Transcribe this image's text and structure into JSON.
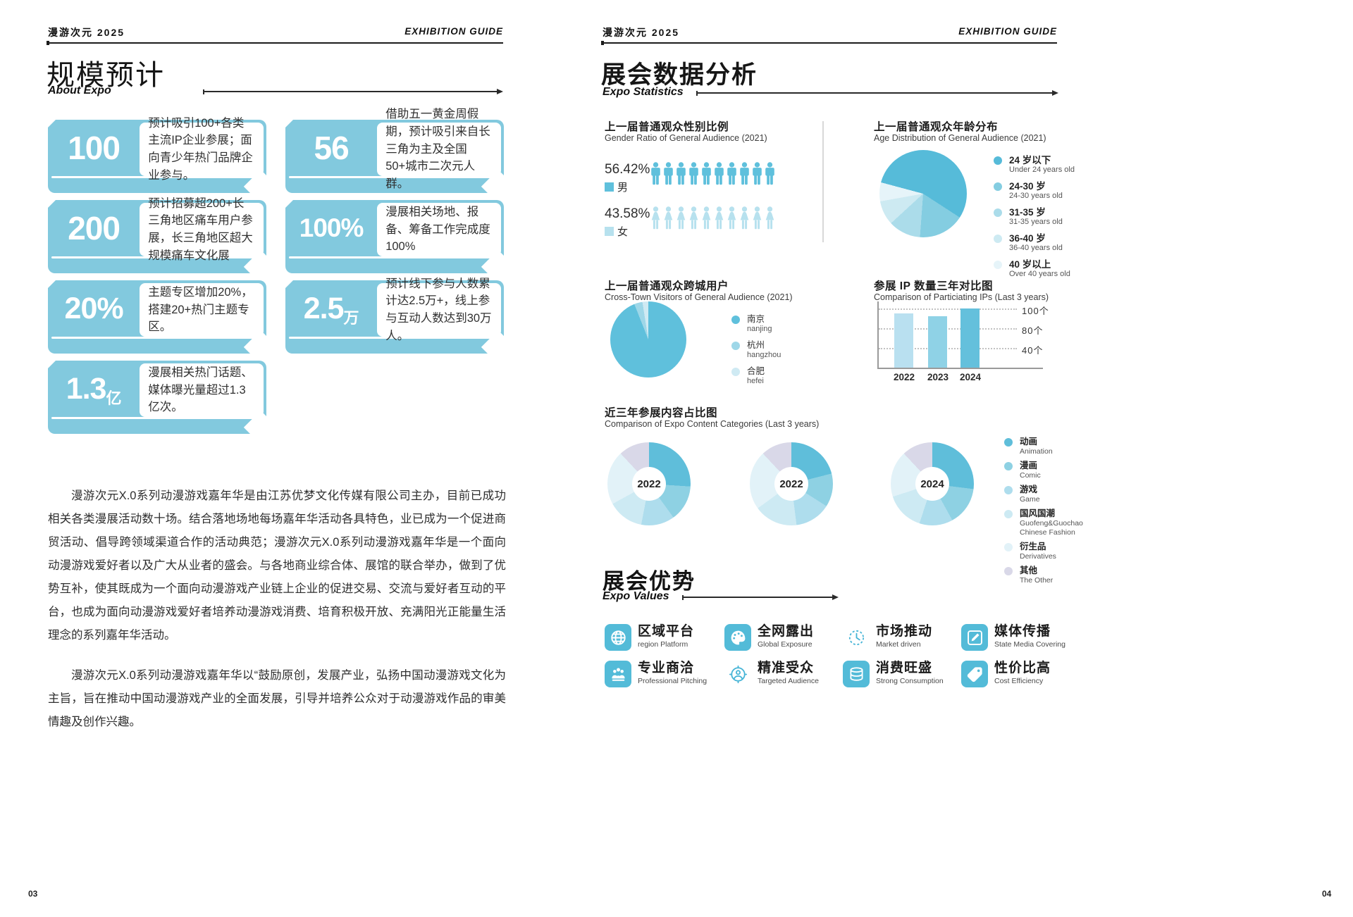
{
  "colors": {
    "accent": "#82c9de",
    "icon_blue": "#53bbd8",
    "male": "#5fc0dc",
    "female": "#b7e1ee",
    "lavender": "#d9d8e8"
  },
  "page_left": {
    "header": {
      "brand": "漫游次元 2025",
      "guide": "EXHIBITION GUIDE"
    },
    "title": "规模预计",
    "subtitle": "About  Expo",
    "cards": [
      {
        "value": "100",
        "unit": "",
        "desc": "预计吸引100+各类主流IP企业参展；面向青少年热门品牌企业参与。"
      },
      {
        "value": "56",
        "unit": "",
        "desc": "借助五一黄金周假期，预计吸引来自长三角为主及全国50+城市二次元人群。"
      },
      {
        "value": "200",
        "unit": "",
        "desc": "预计招募超200+长三角地区痛车用户参展，长三角地区超大规模痛车文化展"
      },
      {
        "value": "100%",
        "unit": "",
        "desc": "漫展相关场地、报备、筹备工作完成度100%"
      },
      {
        "value": "20%",
        "unit": "",
        "desc": "主题专区增加20%，搭建20+热门主题专区。"
      },
      {
        "value": "2.5",
        "unit": "万",
        "desc": "预计线下参与人数累计达2.5万+，线上参与互动人数达到30万人。"
      },
      {
        "value": "1.3",
        "unit": "亿",
        "desc": "漫展相关热门话题、媒体曝光量超过1.3亿次。"
      }
    ],
    "paragraphs": [
      "漫游次元X.0系列动漫游戏嘉年华是由江苏优梦文化传媒有限公司主办，目前已成功相关各类漫展活动数十场。结合落地场地每场嘉年华活动各具特色，业已成为一个促进商贸活动、倡导跨领域渠道合作的活动典范；漫游次元X.0系列动漫游戏嘉年华是一个面向动漫游戏爱好者以及广大从业者的盛会。与各地商业综合体、展馆的联合举办，做到了优势互补，使其既成为一个面向动漫游戏产业链上企业的促进交易、交流与爱好者互动的平台，也成为面向动漫游戏爱好者培养动漫游戏消费、培育积极开放、充满阳光正能量生活理念的系列嘉年华活动。",
      "漫游次元X.0系列动漫游戏嘉年华以“鼓励原创，发展产业，弘扬中国动漫游戏文化为主旨，旨在推动中国动漫游戏产业的全面发展，引导并培养公众对于动漫游戏作品的审美情趣及创作兴趣。"
    ],
    "page_number": "03"
  },
  "page_right": {
    "header": {
      "brand": "漫游次元 2025",
      "guide": "EXHIBITION GUIDE"
    },
    "title": "展会数据分析",
    "subtitle": "Expo Statistics",
    "gender": {
      "title_cn": "上一届普通观众性别比例",
      "title_en": "Gender Ratio of General Audience (2021)",
      "male_pct": "56.42%",
      "male_label": "男",
      "female_pct": "43.58%",
      "female_label": "女"
    },
    "age": {
      "title_cn": "上一届普通观众年龄分布",
      "title_en": "Age Distribution of General Audience (2021)",
      "legend": [
        {
          "cn": "24 岁以下",
          "en": "Under 24 years old"
        },
        {
          "cn": "24-30 岁",
          "en": "24-30 years old"
        },
        {
          "cn": "31-35 岁",
          "en": "31-35 years old"
        },
        {
          "cn": "36-40 岁",
          "en": "36-40 years old"
        },
        {
          "cn": "40 岁以上",
          "en": "Over 40 years old"
        }
      ]
    },
    "crosstown": {
      "title_cn": "上一届普通观众跨城用户",
      "title_en": "Cross-Town Visitors of General Audience (2021)",
      "legend": [
        {
          "cn": "南京",
          "en": "nanjing"
        },
        {
          "cn": "杭州",
          "en": "hangzhou"
        },
        {
          "cn": "合肥",
          "en": "hefei"
        }
      ]
    },
    "ip": {
      "title_cn": "参展 IP 数量三年对比图",
      "title_en": "Comparison of Particiating IPs (Last 3 years)",
      "gridline_labels": [
        "100个",
        "80个",
        "40个"
      ],
      "years": [
        "2022",
        "2023",
        "2024"
      ]
    },
    "categories": {
      "title_cn": "近三年参展内容占比图",
      "title_en": "Comparison of Expo Content Categories (Last 3 years)",
      "donut_labels": [
        "2022",
        "2022",
        "2024"
      ],
      "legend": [
        {
          "cn": "动画",
          "en": "Animation"
        },
        {
          "cn": "漫画",
          "en": "Comic"
        },
        {
          "cn": "游戏",
          "en": "Game"
        },
        {
          "cn": "国风国潮",
          "en": "Guofeng&Guochao Chinese Fashion"
        },
        {
          "cn": "衍生品",
          "en": "Derivatives"
        },
        {
          "cn": "其他",
          "en": "The Other"
        }
      ]
    },
    "values": {
      "title": "展会优势",
      "subtitle": "Expo Values",
      "items": [
        {
          "cn": "区域平台",
          "en": "region Platform",
          "icon": "globe-icon"
        },
        {
          "cn": "全网露出",
          "en": "Global Exposure",
          "icon": "palette-icon"
        },
        {
          "cn": "市场推动",
          "en": "Market driven",
          "icon": "clock-icon"
        },
        {
          "cn": "媒体传播",
          "en": "State Media Covering",
          "icon": "pencil-icon"
        },
        {
          "cn": "专业商洽",
          "en": "Professional Pitching",
          "icon": "meeting-icon"
        },
        {
          "cn": "精准受众",
          "en": "Targeted Audience",
          "icon": "target-audience-icon"
        },
        {
          "cn": "消费旺盛",
          "en": "Strong Consumption",
          "icon": "coins-icon"
        },
        {
          "cn": "性价比高",
          "en": "Cost Efficiency",
          "icon": "tag-icon"
        }
      ]
    },
    "page_number": "04"
  },
  "chart_data": [
    {
      "id": "gender",
      "type": "pictogram",
      "title": "上一届普通观众性别比例",
      "unit": "%",
      "icon_count": 10,
      "series": [
        {
          "name": "男",
          "value": 56.42
        },
        {
          "name": "女",
          "value": 43.58
        }
      ],
      "colors": [
        "#5fc0dc",
        "#b7e1ee"
      ]
    },
    {
      "id": "age",
      "type": "pie",
      "title": "上一届普通观众年龄分布",
      "start_deg": -75,
      "labels": [
        "24 岁以下",
        "24-30 岁",
        "31-35 岁",
        "36-40 岁",
        "40 岁以上"
      ],
      "values": [
        55,
        17,
        12,
        9,
        7
      ],
      "colors": [
        "#56bbd9",
        "#84cde1",
        "#abdcea",
        "#cdeaf2",
        "#e6f4f9"
      ]
    },
    {
      "id": "crosstown",
      "type": "pie",
      "title": "上一届普通观众跨城用户",
      "start_deg": 0,
      "labels": [
        "南京",
        "杭州",
        "合肥"
      ],
      "values": [
        94,
        3.5,
        2.5
      ],
      "colors": [
        "#5fc0dc",
        "#9ed7e8",
        "#cfeaf3"
      ]
    },
    {
      "id": "ip",
      "type": "bar",
      "title": "参展 IP 数量三年对比图",
      "categories": [
        "2022",
        "2023",
        "2024"
      ],
      "values": [
        92,
        87,
        100
      ],
      "unit": "个",
      "ylim": [
        0,
        100
      ],
      "gridlines": [
        100,
        80,
        40
      ],
      "colors": [
        "#b9e0f0",
        "#8fd2e6",
        "#64c0dc"
      ]
    },
    {
      "id": "categories_2022a",
      "type": "donut",
      "label": "2022",
      "start_deg": 0,
      "labels": [
        "动画",
        "漫画",
        "游戏",
        "国风国潮",
        "衍生品",
        "其他"
      ],
      "values": [
        26,
        14,
        13,
        14,
        21,
        12
      ],
      "colors": [
        "#5fbeda",
        "#8ed1e3",
        "#aedded",
        "#cdeaf3",
        "#e2f2f8",
        "#d9d8e8"
      ]
    },
    {
      "id": "categories_2022b",
      "type": "donut",
      "label": "2022",
      "start_deg": 0,
      "labels": [
        "动画",
        "漫画",
        "游戏",
        "国风国潮",
        "衍生品",
        "其他"
      ],
      "values": [
        21,
        13,
        14,
        17,
        23,
        12
      ],
      "colors": [
        "#5fbeda",
        "#8ed1e3",
        "#aedded",
        "#cdeaf3",
        "#e2f2f8",
        "#d9d8e8"
      ]
    },
    {
      "id": "categories_2024",
      "type": "donut",
      "label": "2024",
      "start_deg": 0,
      "labels": [
        "动画",
        "漫画",
        "游戏",
        "国风国潮",
        "衍生品",
        "其他"
      ],
      "values": [
        27,
        15,
        13,
        15,
        18,
        12
      ],
      "colors": [
        "#5fbeda",
        "#8ed1e3",
        "#aedded",
        "#cdeaf3",
        "#e2f2f8",
        "#d9d8e8"
      ]
    }
  ]
}
